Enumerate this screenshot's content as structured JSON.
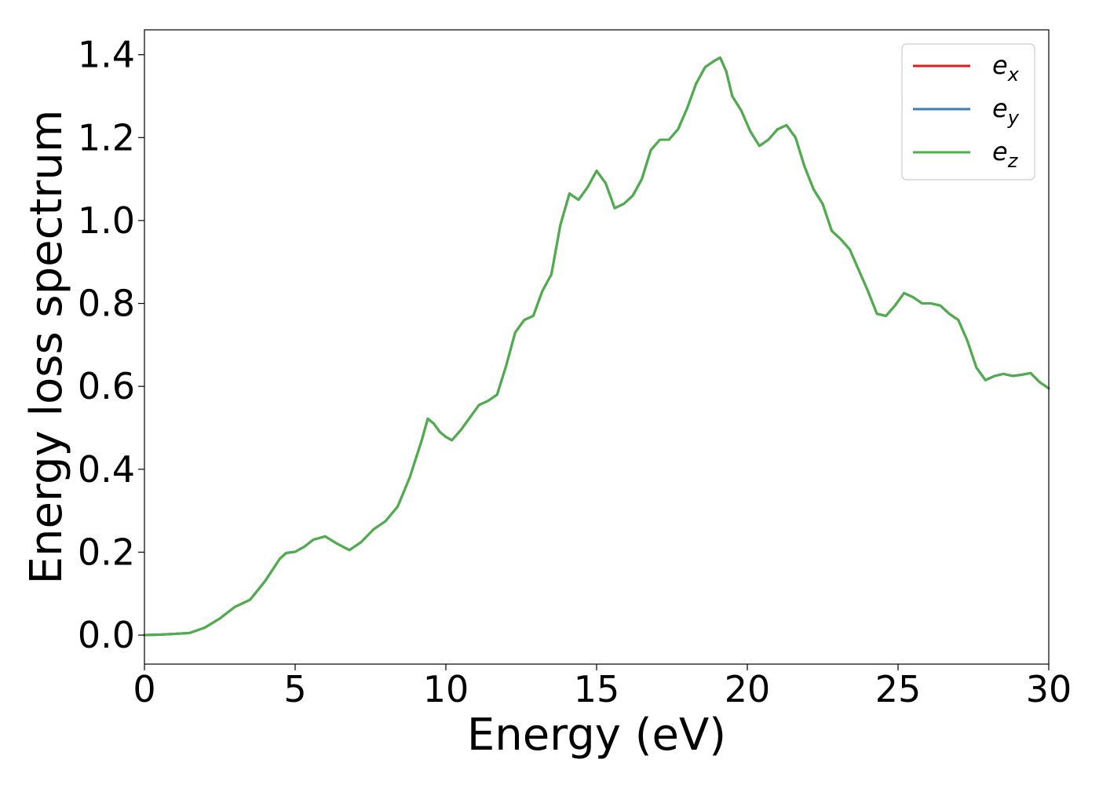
{
  "chart_data": {
    "type": "line",
    "title": "",
    "xlabel": "Energy (eV)",
    "ylabel": "Energy loss spectrum",
    "xlim": [
      0,
      30
    ],
    "ylim": [
      -0.07,
      1.46
    ],
    "xticks": [
      0,
      5,
      10,
      15,
      20,
      25,
      30
    ],
    "xtick_labels": [
      "0",
      "5",
      "10",
      "15",
      "20",
      "25",
      "30"
    ],
    "yticks": [
      0.0,
      0.2,
      0.4,
      0.6,
      0.8,
      1.0,
      1.2,
      1.4
    ],
    "ytick_labels": [
      "0.0",
      "0.2",
      "0.4",
      "0.6",
      "0.8",
      "1.0",
      "1.2",
      "1.4"
    ],
    "grid": false,
    "legend_position": "top-right",
    "x": [
      0.0,
      0.5,
      1.0,
      1.5,
      2.0,
      2.5,
      3.0,
      3.5,
      4.0,
      4.5,
      4.7,
      5.0,
      5.3,
      5.6,
      6.0,
      6.4,
      6.8,
      7.2,
      7.6,
      8.0,
      8.4,
      8.8,
      9.2,
      9.4,
      9.6,
      9.8,
      10.0,
      10.2,
      10.5,
      10.8,
      11.1,
      11.4,
      11.7,
      12.0,
      12.3,
      12.6,
      12.9,
      13.2,
      13.5,
      13.8,
      14.1,
      14.4,
      14.7,
      15.0,
      15.3,
      15.6,
      15.9,
      16.2,
      16.5,
      16.8,
      17.1,
      17.4,
      17.7,
      18.0,
      18.3,
      18.6,
      18.9,
      19.1,
      19.3,
      19.5,
      19.8,
      20.1,
      20.4,
      20.7,
      21.0,
      21.3,
      21.6,
      21.9,
      22.2,
      22.5,
      22.8,
      23.1,
      23.4,
      23.7,
      24.0,
      24.3,
      24.6,
      24.9,
      25.2,
      25.5,
      25.8,
      26.1,
      26.4,
      26.7,
      27.0,
      27.3,
      27.6,
      27.9,
      28.2,
      28.5,
      28.8,
      29.1,
      29.4,
      29.7,
      30.0
    ],
    "series": [
      {
        "name": "e_x",
        "label_base": "e",
        "label_sub": "x",
        "color": "#e41a1c",
        "y": [
          0.0,
          0.001,
          0.003,
          0.005,
          0.018,
          0.04,
          0.068,
          0.085,
          0.13,
          0.185,
          0.198,
          0.201,
          0.213,
          0.23,
          0.238,
          0.22,
          0.205,
          0.225,
          0.255,
          0.275,
          0.31,
          0.38,
          0.47,
          0.522,
          0.51,
          0.49,
          0.478,
          0.47,
          0.495,
          0.525,
          0.555,
          0.565,
          0.58,
          0.65,
          0.73,
          0.76,
          0.77,
          0.83,
          0.87,
          0.99,
          1.065,
          1.05,
          1.08,
          1.12,
          1.09,
          1.03,
          1.04,
          1.06,
          1.1,
          1.17,
          1.195,
          1.195,
          1.22,
          1.27,
          1.33,
          1.37,
          1.385,
          1.393,
          1.36,
          1.3,
          1.265,
          1.215,
          1.18,
          1.195,
          1.22,
          1.23,
          1.2,
          1.13,
          1.075,
          1.04,
          0.975,
          0.955,
          0.93,
          0.88,
          0.83,
          0.775,
          0.77,
          0.795,
          0.825,
          0.815,
          0.8,
          0.8,
          0.795,
          0.775,
          0.76,
          0.71,
          0.645,
          0.615,
          0.625,
          0.63,
          0.625,
          0.628,
          0.632,
          0.61,
          0.595
        ]
      },
      {
        "name": "e_y",
        "label_base": "e",
        "label_sub": "y",
        "color": "#377eb8",
        "y": [
          0.0,
          0.001,
          0.003,
          0.005,
          0.018,
          0.04,
          0.068,
          0.085,
          0.13,
          0.185,
          0.198,
          0.201,
          0.213,
          0.23,
          0.238,
          0.22,
          0.205,
          0.225,
          0.255,
          0.275,
          0.31,
          0.38,
          0.47,
          0.522,
          0.51,
          0.49,
          0.478,
          0.47,
          0.495,
          0.525,
          0.555,
          0.565,
          0.58,
          0.65,
          0.73,
          0.76,
          0.77,
          0.83,
          0.87,
          0.99,
          1.065,
          1.05,
          1.08,
          1.12,
          1.09,
          1.03,
          1.04,
          1.06,
          1.1,
          1.17,
          1.195,
          1.195,
          1.22,
          1.27,
          1.33,
          1.37,
          1.385,
          1.393,
          1.36,
          1.3,
          1.265,
          1.215,
          1.18,
          1.195,
          1.22,
          1.23,
          1.2,
          1.13,
          1.075,
          1.04,
          0.975,
          0.955,
          0.93,
          0.88,
          0.83,
          0.775,
          0.77,
          0.795,
          0.825,
          0.815,
          0.8,
          0.8,
          0.795,
          0.775,
          0.76,
          0.71,
          0.645,
          0.615,
          0.625,
          0.63,
          0.625,
          0.628,
          0.632,
          0.61,
          0.595
        ]
      },
      {
        "name": "e_z",
        "label_base": "e",
        "label_sub": "z",
        "color": "#4daf4a",
        "y": [
          0.0,
          0.001,
          0.003,
          0.005,
          0.018,
          0.04,
          0.068,
          0.085,
          0.13,
          0.185,
          0.198,
          0.201,
          0.213,
          0.23,
          0.238,
          0.22,
          0.205,
          0.225,
          0.255,
          0.275,
          0.31,
          0.38,
          0.47,
          0.522,
          0.51,
          0.49,
          0.478,
          0.47,
          0.495,
          0.525,
          0.555,
          0.565,
          0.58,
          0.65,
          0.73,
          0.76,
          0.77,
          0.83,
          0.87,
          0.99,
          1.065,
          1.05,
          1.08,
          1.12,
          1.09,
          1.03,
          1.04,
          1.06,
          1.1,
          1.17,
          1.195,
          1.195,
          1.22,
          1.27,
          1.33,
          1.37,
          1.385,
          1.393,
          1.36,
          1.3,
          1.265,
          1.215,
          1.18,
          1.195,
          1.22,
          1.23,
          1.2,
          1.13,
          1.075,
          1.04,
          0.975,
          0.955,
          0.93,
          0.88,
          0.83,
          0.775,
          0.77,
          0.795,
          0.825,
          0.815,
          0.8,
          0.8,
          0.795,
          0.775,
          0.76,
          0.71,
          0.645,
          0.615,
          0.625,
          0.63,
          0.625,
          0.628,
          0.632,
          0.61,
          0.595
        ]
      }
    ]
  }
}
